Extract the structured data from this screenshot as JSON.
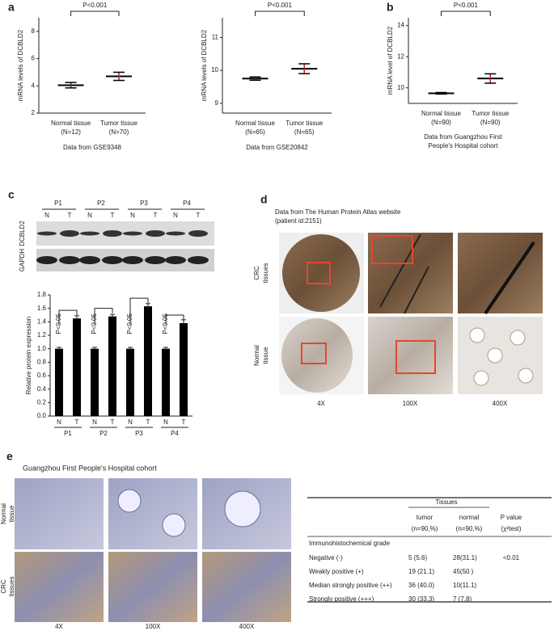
{
  "panel_labels": [
    "a",
    "b",
    "c",
    "d",
    "e"
  ],
  "scatter_plots": [
    {
      "ylabel": "mRNA levels of DCBLD2",
      "categories": [
        "Normal tissue",
        "Tumor tissue"
      ],
      "n": [
        "(N=12)",
        "(N=70)"
      ],
      "p": "P<0.001",
      "source": [
        "Data from GSE9348"
      ],
      "ylim": [
        2,
        9
      ],
      "yticks": [
        2,
        4,
        6,
        8
      ],
      "mean": [
        4.05,
        4.7
      ],
      "err": [
        0.2,
        0.3
      ],
      "colors": [
        "#1f3f8f",
        "#c0282d"
      ]
    },
    {
      "ylabel": "mRNA levels of DCBLD2",
      "categories": [
        "Normal tissue",
        "Tumor tissue"
      ],
      "n": [
        "(N=65)",
        "(N=65)"
      ],
      "p": "P<0.001",
      "source": [
        "Data from GSE20842"
      ],
      "ylim": [
        8.7,
        11.6
      ],
      "yticks": [
        9,
        10,
        11
      ],
      "mean": [
        9.75,
        10.05
      ],
      "err": [
        0.05,
        0.15
      ],
      "colors": [
        "#1f3f8f",
        "#c0282d"
      ]
    },
    {
      "ylabel": "mRNA level of DCBLD2",
      "categories": [
        "Normal tissue",
        "Tumor tissue"
      ],
      "n": [
        "(N=90)",
        "(N=90)"
      ],
      "p": "P<0.001",
      "source": [
        "Data from Guangzhou First",
        "People's Hospital cohort"
      ],
      "ylim": [
        9,
        14.5
      ],
      "yticks": [
        10,
        12,
        14
      ],
      "mean": [
        9.65,
        10.6
      ],
      "err": [
        0.05,
        0.3
      ],
      "colors": [
        "#1f3f8f",
        "#c0282d"
      ]
    }
  ],
  "blot": {
    "patients": [
      "P1",
      "P2",
      "P3",
      "P4"
    ],
    "lanes": [
      "N",
      "T"
    ],
    "proteins": [
      "DCBLD2",
      "GAPDH"
    ]
  },
  "bar_chart": {
    "ylabel": "Relative protein expression",
    "groups": [
      "P1",
      "P2",
      "P3",
      "P4"
    ],
    "lanes": [
      "N",
      "T"
    ],
    "values": [
      [
        1.0,
        1.45
      ],
      [
        1.0,
        1.48
      ],
      [
        1.0,
        1.63
      ],
      [
        1.0,
        1.38
      ]
    ],
    "err": [
      [
        0.02,
        0.04
      ],
      [
        0.02,
        0.03
      ],
      [
        0.02,
        0.04
      ],
      [
        0.02,
        0.05
      ]
    ],
    "p": [
      "P<0.05",
      "P<0.05",
      "P<0.05",
      "P<0.05"
    ],
    "ylim": [
      0,
      1.8
    ],
    "yticks": [
      {
        "value": 0,
        "label": "0.0"
      },
      0.2,
      0.4,
      0.6,
      0.8,
      {
        "value": 1,
        "label": "1.0"
      },
      1.2,
      1.4,
      1.6,
      1.8
    ],
    "color": "#000000"
  },
  "panel_d": {
    "title": [
      "Data from The Human Protein Atlas website",
      "(patient id:2151)"
    ],
    "rows": [
      [
        "CRC",
        "tissues"
      ],
      [
        "Normal",
        "tissue"
      ]
    ],
    "columns": [
      "4X",
      "100X",
      "400X"
    ]
  },
  "panel_e": {
    "title": "Guangzhou First People's Hospital cohort",
    "rows": [
      [
        "Normal",
        "tissue"
      ],
      [
        "CRC",
        "tissues"
      ]
    ],
    "columns": [
      "4X",
      "100X",
      "400X"
    ],
    "table": {
      "group_header": "Tissues",
      "header": [
        "",
        "tumor",
        "normal",
        "P value"
      ],
      "subheader": [
        "",
        "(n=90,%)",
        "(n=90,%)",
        "(χ²test)"
      ],
      "section": "Immunohistochemical grade",
      "rows": [
        [
          "Negative (-)",
          "5  (5.6)",
          "28(31.1)",
          "<0.01"
        ],
        [
          "Weakly positive (+)",
          "19 (21.1)",
          "45(50 )",
          ""
        ],
        [
          "Median strongly positive (++)",
          "36 (40.0)",
          "10(11.1)",
          ""
        ],
        [
          "Strongly positive (+++)",
          "30 (33.3)",
          "7 (7.8)",
          ""
        ]
      ]
    }
  }
}
